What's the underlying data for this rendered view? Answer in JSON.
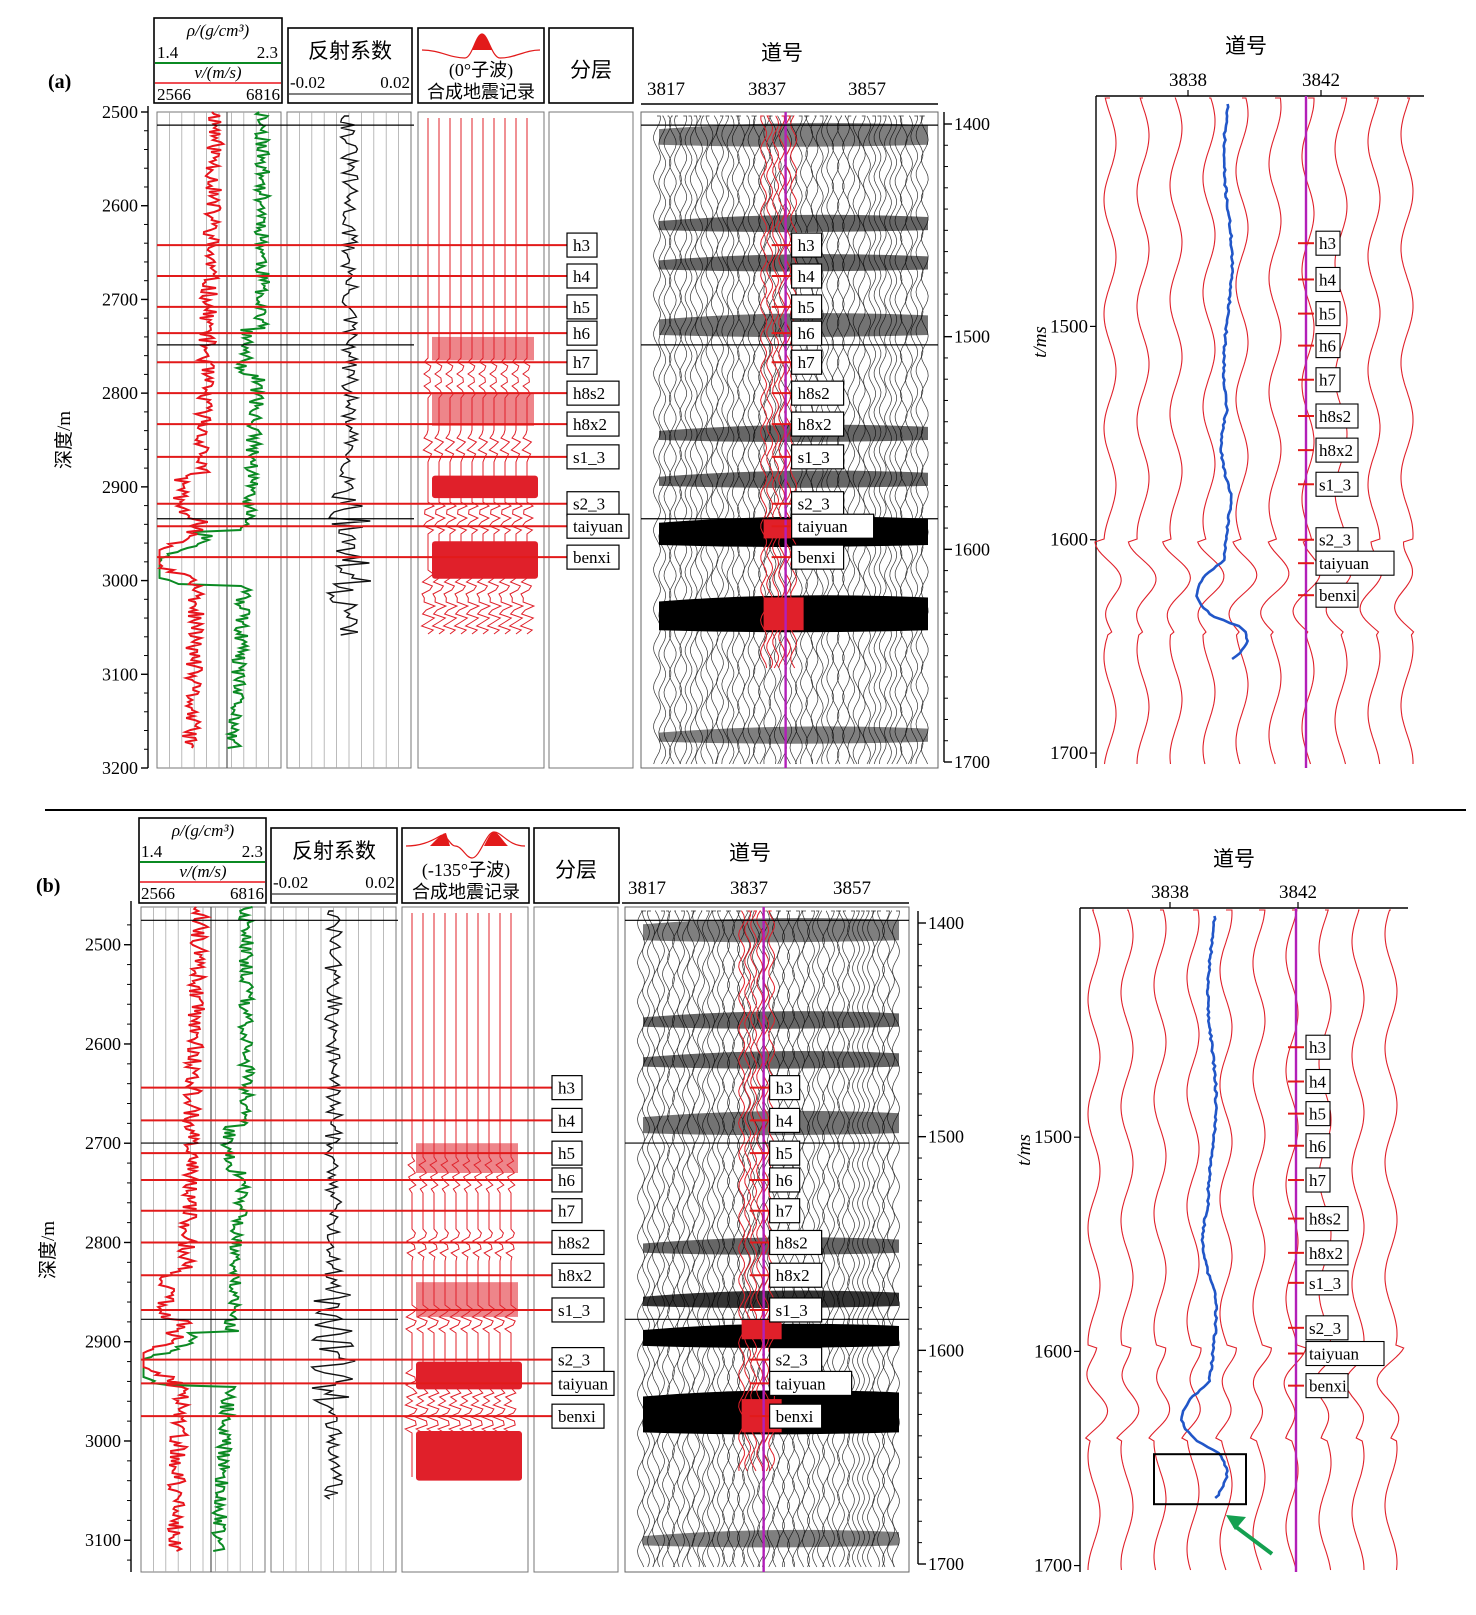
{
  "panels": [
    {
      "id": "a",
      "letter": "(a)",
      "log_header": {
        "rho_label": "ρ/(g/cm³)",
        "rho_min": "1.4",
        "rho_max": "2.3",
        "v_label": "v/(m/s)",
        "v_min": "2566",
        "v_max": "6816"
      },
      "rc_header": {
        "title": "反射系数",
        "min": "-0.02",
        "max": "0.02"
      },
      "synth_header": {
        "line1": "(0°子波)",
        "line2": "合成地震记录"
      },
      "layer_header": "分层",
      "trace_title": "道号",
      "trace_ticks": [
        "3817",
        "3837",
        "3857"
      ],
      "depth_axis_label": "深度/m",
      "depth_ticks": [
        "2500",
        "2600",
        "2700",
        "2800",
        "2900",
        "3000",
        "3100",
        "3200"
      ],
      "depth_range": [
        2500,
        3200
      ],
      "time_ticks": [
        "1400",
        "1500",
        "1600",
        "1700"
      ],
      "horizons": [
        {
          "name": "h3",
          "depth": 2642
        },
        {
          "name": "h4",
          "depth": 2675
        },
        {
          "name": "h5",
          "depth": 2708
        },
        {
          "name": "h6",
          "depth": 2736
        },
        {
          "name": "h7",
          "depth": 2767
        },
        {
          "name": "h8s2",
          "depth": 2800
        },
        {
          "name": "h8x2",
          "depth": 2833
        },
        {
          "name": "s1_3",
          "depth": 2868
        },
        {
          "name": "s2_3",
          "depth": 2918
        },
        {
          "name": "taiyuan",
          "depth": 2942
        },
        {
          "name": "benxi",
          "depth": 2975
        }
      ],
      "zoom": {
        "title": "道号",
        "x_ticks": [
          "3838",
          "3842"
        ],
        "y_ticks": [
          "1500",
          "1600",
          "1700"
        ],
        "y_label": "t/ms",
        "horizon_times": [
          1461,
          1478,
          1494,
          1509,
          1525,
          1542,
          1558,
          1574,
          1600,
          1611,
          1626
        ]
      }
    },
    {
      "id": "b",
      "letter": "(b)",
      "log_header": {
        "rho_label": "ρ/(g/cm³)",
        "rho_min": "1.4",
        "rho_max": "2.3",
        "v_label": "v/(m/s)",
        "v_min": "2566",
        "v_max": "6816"
      },
      "rc_header": {
        "title": "反射系数",
        "min": "-0.02",
        "max": "0.02"
      },
      "synth_header": {
        "line1": "(-135°子波)",
        "line2": "合成地震记录"
      },
      "layer_header": "分层",
      "trace_title": "道号",
      "trace_ticks": [
        "3817",
        "3837",
        "3857"
      ],
      "depth_axis_label": "深度/m",
      "depth_ticks": [
        "2500",
        "2600",
        "2700",
        "2800",
        "2900",
        "3000",
        "3100"
      ],
      "depth_range": [
        2462,
        3132
      ],
      "time_ticks": [
        "1400",
        "1500",
        "1600",
        "1700"
      ],
      "horizons": [
        {
          "name": "h3",
          "depth": 2644
        },
        {
          "name": "h4",
          "depth": 2677
        },
        {
          "name": "h5",
          "depth": 2710
        },
        {
          "name": "h6",
          "depth": 2737
        },
        {
          "name": "h7",
          "depth": 2768
        },
        {
          "name": "h8s2",
          "depth": 2800
        },
        {
          "name": "h8x2",
          "depth": 2833
        },
        {
          "name": "s1_3",
          "depth": 2868
        },
        {
          "name": "s2_3",
          "depth": 2918
        },
        {
          "name": "taiyuan",
          "depth": 2942
        },
        {
          "name": "benxi",
          "depth": 2975
        }
      ],
      "zoom": {
        "title": "道号",
        "x_ticks": [
          "3838",
          "3842"
        ],
        "y_ticks": [
          "1500",
          "1600",
          "1700"
        ],
        "y_label": "t/ms",
        "horizon_times": [
          1458,
          1474,
          1489,
          1504,
          1520,
          1538,
          1554,
          1568,
          1589,
          1601,
          1616
        ]
      }
    }
  ],
  "colors": {
    "density": "#e8141c",
    "velocity": "#0b8a23",
    "horizon": "#e21a1a",
    "trace": "#e0202a",
    "well": "#2156c8",
    "marker": "#b21fb8",
    "arrow": "#14a050",
    "wiggle": "#000000"
  }
}
